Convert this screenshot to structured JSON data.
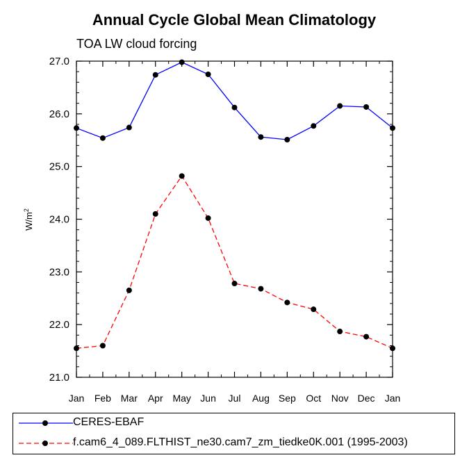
{
  "chart_data": {
    "type": "line",
    "title": "Annual Cycle Global Mean Climatology",
    "subtitle": "TOA LW cloud forcing",
    "xlabel": "",
    "ylabel": "W/m",
    "ylabel_sup": "2",
    "categories": [
      "Jan",
      "Feb",
      "Mar",
      "Apr",
      "May",
      "Jun",
      "Jul",
      "Aug",
      "Sep",
      "Oct",
      "Nov",
      "Dec",
      "Jan"
    ],
    "ylim": [
      21.0,
      27.0
    ],
    "yticks": [
      "21.0",
      "22.0",
      "23.0",
      "24.0",
      "25.0",
      "26.0",
      "27.0"
    ],
    "grid": false,
    "legend_position": "bottom",
    "series": [
      {
        "name": "CERES-EBAF",
        "color": "#0000ff",
        "dash": "solid",
        "values": [
          25.73,
          25.54,
          25.74,
          26.74,
          26.98,
          26.75,
          26.12,
          25.56,
          25.51,
          25.77,
          26.15,
          26.13,
          25.73
        ]
      },
      {
        "name": "f.cam6_4_089.FLTHIST_ne30.cam7_zm_tiedke0K.001 (1995-2003)",
        "color": "#ff0000",
        "dash": "dashed",
        "values": [
          21.55,
          21.6,
          22.65,
          24.1,
          24.82,
          24.02,
          22.78,
          22.68,
          22.42,
          22.29,
          21.87,
          21.77,
          21.55
        ]
      }
    ]
  }
}
